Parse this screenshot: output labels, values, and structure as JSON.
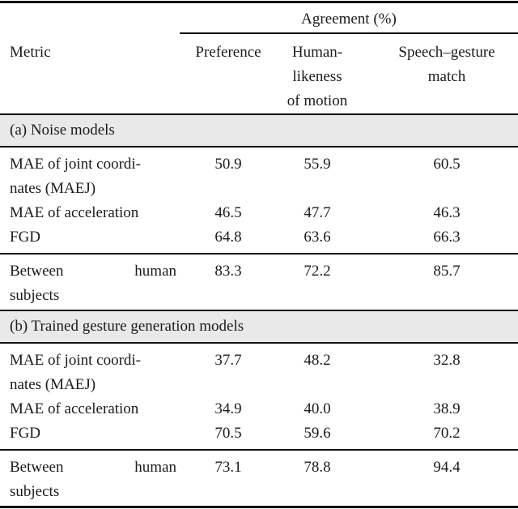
{
  "table": {
    "spanner": "Agreement (%)",
    "metric_header": "Metric",
    "columns": [
      "Preference",
      "Human-\nlikeness\nof motion",
      "Speech–gesture\nmatch"
    ],
    "sections": [
      {
        "title": "(a) Noise models",
        "rows": [
          {
            "metric": "MAE of joint coordi-\nnates (MAEJ)",
            "values": [
              "50.9",
              "55.9",
              "60.5"
            ]
          },
          {
            "metric": "MAE of acceleration",
            "values": [
              "46.5",
              "47.7",
              "46.3"
            ]
          },
          {
            "metric": "FGD",
            "values": [
              "64.8",
              "63.6",
              "66.3"
            ]
          }
        ],
        "baseline": {
          "metric": "Between human\nsubjects",
          "values": [
            "83.3",
            "72.2",
            "85.7"
          ]
        }
      },
      {
        "title": "(b) Trained gesture generation models",
        "rows": [
          {
            "metric": "MAE of joint coordi-\nnates (MAEJ)",
            "values": [
              "37.7",
              "48.2",
              "32.8"
            ]
          },
          {
            "metric": "MAE of acceleration",
            "values": [
              "34.9",
              "40.0",
              "38.9"
            ]
          },
          {
            "metric": "FGD",
            "values": [
              "70.5",
              "59.6",
              "70.2"
            ]
          }
        ],
        "baseline": {
          "metric": "Between human\nsubjects",
          "values": [
            "73.1",
            "78.8",
            "94.4"
          ]
        }
      }
    ]
  },
  "colors": {
    "band_background": "#e9e9e9",
    "text": "#1b1b1b",
    "rule": "#121212",
    "page_background": "#ffffff"
  }
}
